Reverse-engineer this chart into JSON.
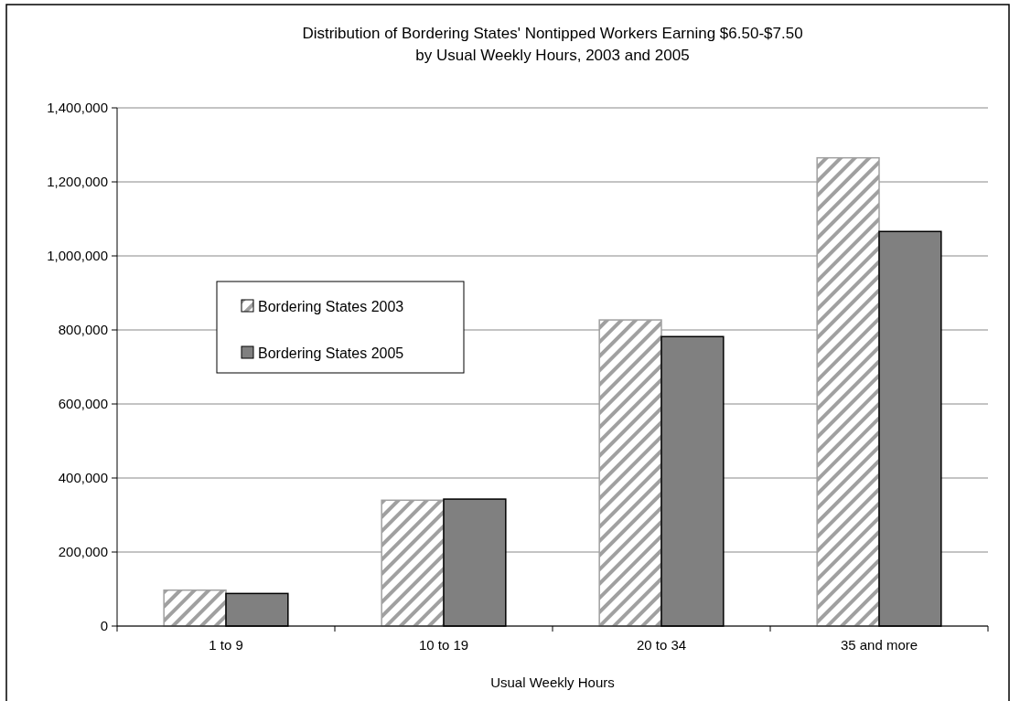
{
  "chart_data": {
    "type": "bar",
    "title": "Distribution of Bordering States' Nontipped Workers Earning $6.50-$7.50\nby Usual Weekly Hours, 2003 and 2005",
    "xlabel": "Usual Weekly Hours",
    "categories": [
      "1 to 9",
      "10 to 19",
      "20 to 34",
      "35 and more"
    ],
    "series": [
      {
        "name": "Bordering States 2003",
        "color": "#a0a0a0",
        "values": [
          97000,
          340000,
          827000,
          1265000
        ]
      },
      {
        "name": "Bordering States 2005",
        "color": "#808080",
        "values": [
          88000,
          343000,
          782000,
          1066000
        ]
      }
    ],
    "ylim": [
      0,
      1400000
    ],
    "yticks": [
      {
        "value": 0,
        "label": "0"
      },
      {
        "value": 200000,
        "label": "200,000"
      },
      {
        "value": 400000,
        "label": "400,000"
      },
      {
        "value": 600000,
        "label": "600,000"
      },
      {
        "value": 800000,
        "label": "800,000"
      },
      {
        "value": 1000000,
        "label": "1,000,000"
      },
      {
        "value": 1200000,
        "label": "1,200,000"
      },
      {
        "value": 1400000,
        "label": "1,400,000"
      }
    ],
    "grid": "y",
    "legend": "left"
  }
}
